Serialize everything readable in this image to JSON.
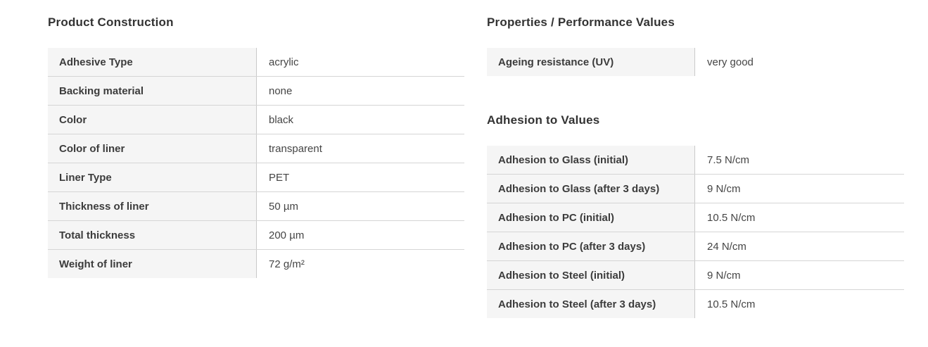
{
  "product_construction": {
    "title": "Product Construction",
    "rows": [
      {
        "label": "Adhesive Type",
        "value": "acrylic"
      },
      {
        "label": "Backing material",
        "value": "none"
      },
      {
        "label": "Color",
        "value": "black"
      },
      {
        "label": "Color of liner",
        "value": "transparent"
      },
      {
        "label": "Liner Type",
        "value": "PET"
      },
      {
        "label": "Thickness of liner",
        "value": "50 µm"
      },
      {
        "label": "Total thickness",
        "value": "200 µm"
      },
      {
        "label": "Weight of liner",
        "value": "72 g/m²"
      }
    ]
  },
  "performance": {
    "title": "Properties / Performance Values",
    "rows": [
      {
        "label": "Ageing resistance (UV)",
        "value": "very good"
      }
    ]
  },
  "adhesion": {
    "title": "Adhesion to Values",
    "rows": [
      {
        "label": "Adhesion to Glass (initial)",
        "value": "7.5 N/cm"
      },
      {
        "label": "Adhesion to Glass (after 3 days)",
        "value": "9 N/cm"
      },
      {
        "label": "Adhesion to PC (initial)",
        "value": "10.5 N/cm"
      },
      {
        "label": "Adhesion to PC (after 3 days)",
        "value": "24 N/cm"
      },
      {
        "label": "Adhesion to Steel (initial)",
        "value": "9 N/cm"
      },
      {
        "label": "Adhesion to Steel (after 3 days)",
        "value": "10.5 N/cm"
      }
    ]
  },
  "colors": {
    "label_cell_bg": "#f5f5f5",
    "row_border": "#d5d5d5",
    "column_divider": "#c9c9c9",
    "heading_text": "#333333",
    "label_text": "#3c3c3c",
    "value_text": "#454545",
    "page_bg": "#ffffff"
  }
}
